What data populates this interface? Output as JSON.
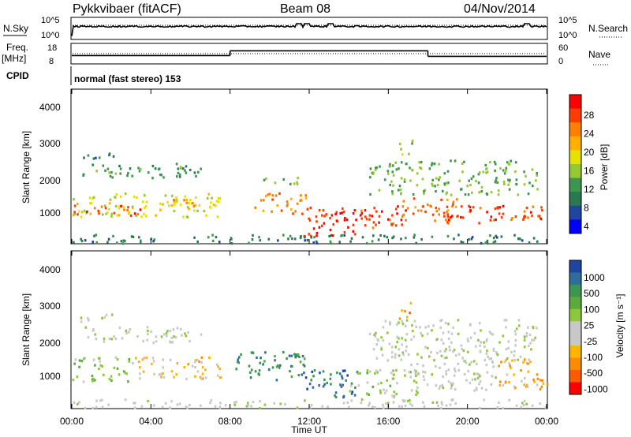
{
  "header": {
    "radar": "Pykkvibaer (fitACF)",
    "beam": "Beam 08",
    "date": "04/Nov/2014"
  },
  "strips": {
    "nsky_label": "N.Sky",
    "nsky_ticks": [
      "10^5",
      "10^0"
    ],
    "nsearch_label": "N.Search",
    "nsearch_ticks": [
      "10^5",
      "10^0"
    ],
    "freq_label_1": "Freq.",
    "freq_label_2": "[MHz]",
    "freq_ticks": [
      "18",
      "8"
    ],
    "nave_label": "Nave",
    "nave_ticks": [
      "60",
      "0"
    ],
    "cpid_label": "CPID",
    "cpid_text": "normal (fast stereo) 153"
  },
  "axes": {
    "ylabel": "Slant Range [km]",
    "yticks": [
      "4000",
      "3000",
      "2000",
      "1000"
    ],
    "xticks": [
      "00:00",
      "04:00",
      "08:00",
      "12:00",
      "16:00",
      "20:00",
      "00:00"
    ],
    "xlabel": "Time UT"
  },
  "colorbars": {
    "power": {
      "label": "Power [dB]",
      "ticks": [
        "28",
        "24",
        "20",
        "16",
        "12",
        "8",
        "4"
      ],
      "colors": [
        "#ff0000",
        "#ff3c00",
        "#ff7f00",
        "#ffb000",
        "#e8e000",
        "#96c832",
        "#3c9650",
        "#287850",
        "#1e46a0",
        "#0000ff"
      ]
    },
    "velocity": {
      "label": "Velocity [m s⁻¹]",
      "ticks": [
        "1000",
        "500",
        "100",
        "25",
        "-25",
        "-100",
        "-500",
        "-1000"
      ],
      "colors": [
        "#1e46a0",
        "#2d6e9b",
        "#3c9650",
        "#5aaa3c",
        "#8cc83c",
        "#c8c8c8",
        "#c8c8c8",
        "#ffb400",
        "#ff8c00",
        "#ff5a00",
        "#ff0000"
      ]
    }
  },
  "chart_data": {
    "type": "heatmap",
    "title": "Pykkvibaer (fitACF)  Beam 08  04/Nov/2014",
    "xlabel": "Time UT",
    "ylabel": "Slant Range [km]",
    "xlim_hours": [
      0,
      24
    ],
    "ylim_km": [
      180,
      4600
    ],
    "grid": false,
    "panels": [
      {
        "name": "Power",
        "units": "dB",
        "clim": [
          0,
          30
        ],
        "scatter_bands": [
          {
            "t": [
              0.5,
              6.5
            ],
            "r": [
              2050,
              2500
            ],
            "value": 10
          },
          {
            "t": [
              0.3,
              2.5
            ],
            "r": [
              2650,
              2850
            ],
            "value": 7
          },
          {
            "t": [
              0.0,
              7.5
            ],
            "r": [
              950,
              1650
            ],
            "value": 16
          },
          {
            "t": [
              0.0,
              3.5
            ],
            "r": [
              1000,
              1300
            ],
            "value": 26
          },
          {
            "t": [
              4.5,
              6.5
            ],
            "r": [
              1250,
              1500
            ],
            "value": 22
          },
          {
            "t": [
              9.2,
              11.8
            ],
            "r": [
              1050,
              1650
            ],
            "value": 22
          },
          {
            "t": [
              9.5,
              11.5
            ],
            "r": [
              1900,
              2150
            ],
            "value": 12
          },
          {
            "t": [
              11.7,
              14.5
            ],
            "r": [
              400,
              1300
            ],
            "value": 27
          },
          {
            "t": [
              14.5,
              17.0
            ],
            "r": [
              600,
              1300
            ],
            "value": 26
          },
          {
            "t": [
              16.5,
              19.5
            ],
            "r": [
              850,
              1500
            ],
            "value": 23
          },
          {
            "t": [
              18.5,
              24.0
            ],
            "r": [
              750,
              1300
            ],
            "value": 26
          },
          {
            "t": [
              15.0,
              23.5
            ],
            "r": [
              1600,
              2600
            ],
            "value": 12
          },
          {
            "t": [
              16.5,
              17.2
            ],
            "r": [
              2700,
              3200
            ],
            "value": 14
          },
          {
            "t": [
              0.0,
              24.0
            ],
            "r": [
              200,
              450
            ],
            "value": 8
          }
        ]
      },
      {
        "name": "Velocity",
        "units": "m s-1",
        "clim": [
          -1000,
          1000
        ],
        "scatter_bands": [
          {
            "t": [
              0.5,
              6.5
            ],
            "r": [
              2050,
              2500
            ],
            "value": 0
          },
          {
            "t": [
              0.3,
              2.5
            ],
            "r": [
              2650,
              2850
            ],
            "value": 0
          },
          {
            "t": [
              0.0,
              3.0
            ],
            "r": [
              950,
              1650
            ],
            "value": 200
          },
          {
            "t": [
              3.0,
              7.5
            ],
            "r": [
              1000,
              1650
            ],
            "value": -300
          },
          {
            "t": [
              8.0,
              11.8
            ],
            "r": [
              1000,
              1800
            ],
            "value": 600
          },
          {
            "t": [
              11.7,
              14.5
            ],
            "r": [
              500,
              1300
            ],
            "value": 700
          },
          {
            "t": [
              14.0,
              17.5
            ],
            "r": [
              500,
              1300
            ],
            "value": 150
          },
          {
            "t": [
              17.0,
              21.5
            ],
            "r": [
              700,
              1500
            ],
            "value": -50
          },
          {
            "t": [
              21.5,
              24.0
            ],
            "r": [
              700,
              1600
            ],
            "value": -400
          },
          {
            "t": [
              15.0,
              23.5
            ],
            "r": [
              1500,
              2700
            ],
            "value": 0
          },
          {
            "t": [
              16.5,
              17.2
            ],
            "r": [
              2700,
              3200
            ],
            "value": -600
          },
          {
            "t": [
              0.0,
              24.0
            ],
            "r": [
              200,
              450
            ],
            "value": -30
          }
        ]
      }
    ],
    "freq_MHz": {
      "segments": [
        {
          "t": [
            0.0,
            8.0
          ],
          "value": 12.0
        },
        {
          "t": [
            8.0,
            18.0
          ],
          "value": 14.5
        },
        {
          "t": [
            18.0,
            24.0
          ],
          "value": 11.6
        }
      ]
    },
    "nave": {
      "segments": [
        {
          "t": [
            0.0,
            24.0
          ],
          "value": 30
        }
      ]
    },
    "noise_sky": {
      "spikes_at_hours": [
        11.5,
        11.9,
        13.1,
        23.0
      ]
    }
  }
}
